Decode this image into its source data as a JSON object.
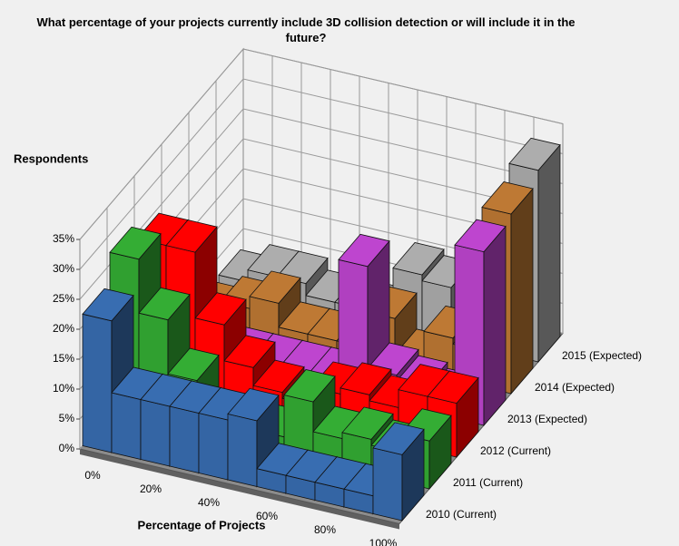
{
  "chart_data": {
    "type": "bar3d",
    "title": "What percentage of your projects currently include 3D collision detection or will include it in the future?",
    "y_label": "Respondents",
    "x_label": "Percentage of Projects",
    "categories": [
      "0%",
      null,
      "20%",
      null,
      "40%",
      null,
      "60%",
      null,
      "80%",
      null,
      "100%"
    ],
    "series": [
      {
        "name": "2010 (Current)",
        "color": "#3465a4",
        "values": [
          22,
          10,
          10,
          10,
          10,
          11,
          3,
          3,
          3,
          3,
          11
        ]
      },
      {
        "name": "2011 (Current)",
        "color": "#30a030",
        "values": [
          27,
          18,
          9,
          3,
          3,
          3,
          10,
          5,
          6,
          5,
          8
        ]
      },
      {
        "name": "2012 (Current)",
        "color": "#ff0000",
        "values": [
          24,
          24,
          13,
          7,
          4,
          3,
          6,
          7,
          6,
          9,
          9
        ]
      },
      {
        "name": "2013 (Expected)",
        "color": "#b040c0",
        "values": [
          2,
          2,
          2,
          2,
          2,
          2,
          22,
          5,
          4,
          3,
          29
        ]
      },
      {
        "name": "2014 (Expected)",
        "color": "#b07030",
        "values": [
          2,
          4,
          6,
          2,
          2,
          2,
          8,
          2,
          7,
          6,
          30
        ]
      },
      {
        "name": "2015 (Expected)",
        "color": "#a0a0a0",
        "values": [
          2,
          4,
          4,
          2,
          2,
          2,
          10,
          9,
          2,
          8,
          32
        ]
      }
    ],
    "ylim": [
      0,
      35
    ],
    "yticks": [
      {
        "value": 0,
        "label": "0%"
      },
      {
        "value": 5,
        "label": "5%"
      },
      {
        "value": 10,
        "label": "10%"
      },
      {
        "value": 15,
        "label": "15%"
      },
      {
        "value": 20,
        "label": "20%"
      },
      {
        "value": 25,
        "label": "25%"
      },
      {
        "value": 30,
        "label": "30%"
      },
      {
        "value": 35,
        "label": "35%"
      }
    ],
    "grid": true
  }
}
